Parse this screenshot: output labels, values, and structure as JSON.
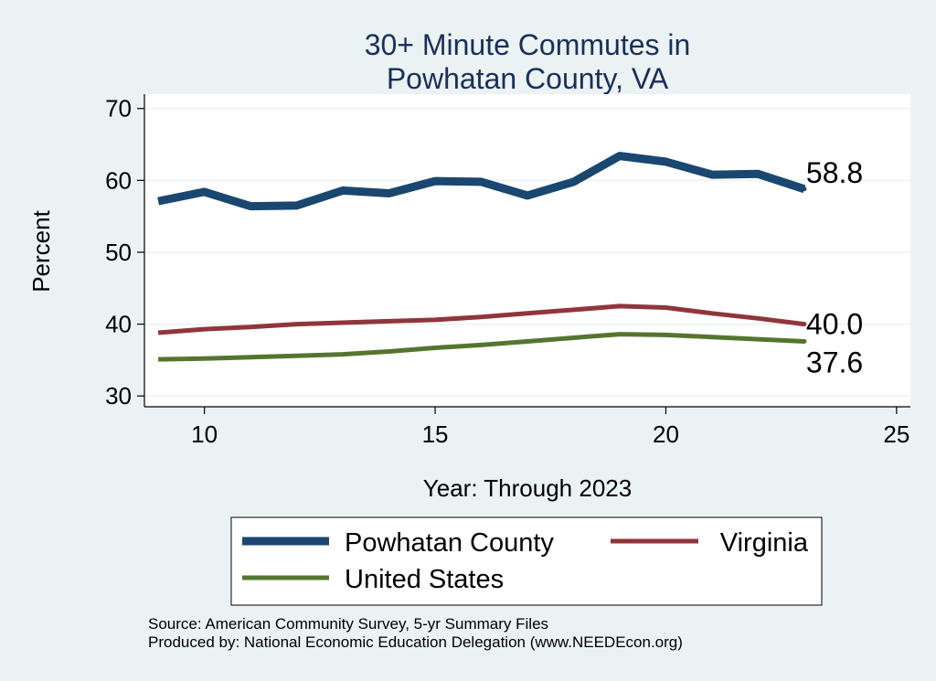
{
  "chart_data": {
    "type": "line",
    "title": [
      "30+ Minute Commutes in",
      "Powhatan County, VA"
    ],
    "xlabel": "Year: Through 2023",
    "ylabel": "Percent",
    "xlim": [
      8.7,
      25.3
    ],
    "ylim": [
      28.5,
      72
    ],
    "xticks": [
      10,
      15,
      20,
      25
    ],
    "yticks": [
      30,
      40,
      50,
      60,
      70
    ],
    "grid": true,
    "x": [
      9,
      10,
      11,
      12,
      13,
      14,
      15,
      16,
      17,
      18,
      19,
      20,
      21,
      22,
      23
    ],
    "series": [
      {
        "name": "Powhatan County",
        "color": "#1a476f",
        "values": [
          57.1,
          58.4,
          56.4,
          56.5,
          58.6,
          58.2,
          59.9,
          59.8,
          57.9,
          59.8,
          63.4,
          62.6,
          60.8,
          60.9,
          58.8
        ],
        "end_label": "58.8"
      },
      {
        "name": "Virginia",
        "color": "#90353b",
        "values": [
          38.8,
          39.3,
          39.6,
          40.0,
          40.2,
          40.4,
          40.6,
          41.0,
          41.5,
          42.0,
          42.5,
          42.3,
          41.5,
          40.8,
          40.0
        ],
        "end_label": "40.0"
      },
      {
        "name": "United States",
        "color": "#55752f",
        "values": [
          35.1,
          35.2,
          35.4,
          35.6,
          35.8,
          36.2,
          36.7,
          37.1,
          37.6,
          38.1,
          38.6,
          38.5,
          38.2,
          37.9,
          37.6
        ],
        "end_label": "37.6"
      }
    ],
    "legend_position": "bottom",
    "notes": [
      "Source: American Community Survey, 5-yr Summary Files",
      "Produced by: National Economic Education Delegation (www.NEEDEcon.org)"
    ]
  }
}
